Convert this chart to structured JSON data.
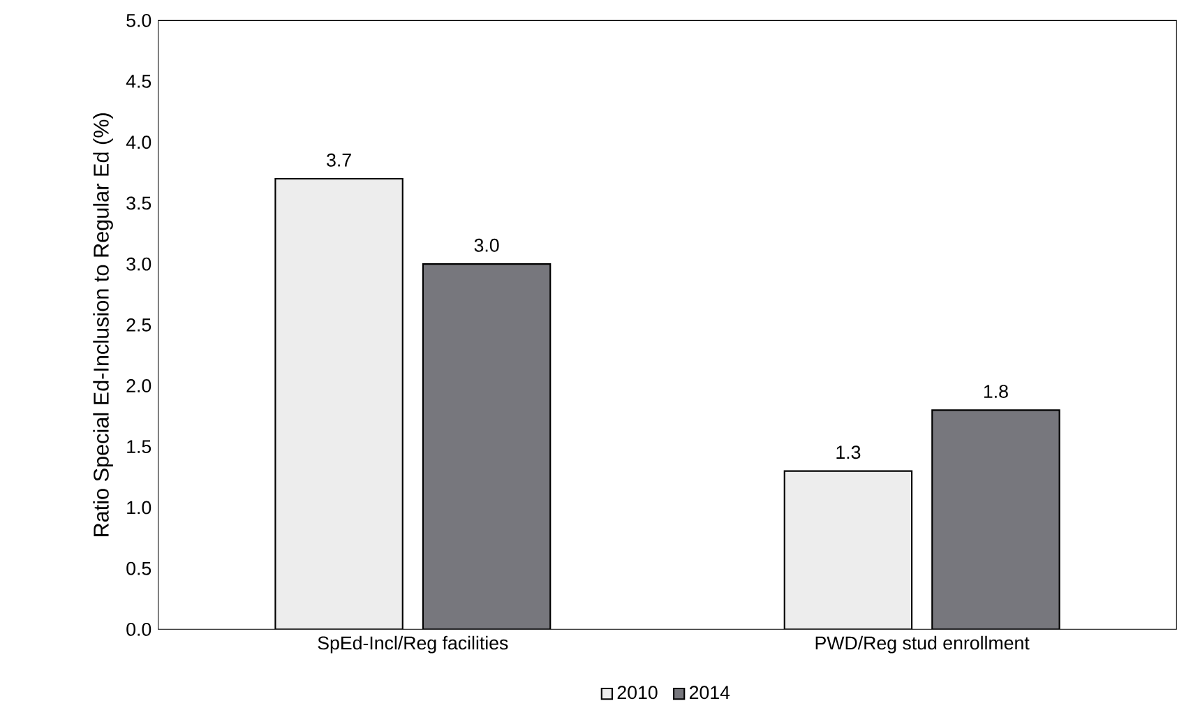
{
  "chart_data": {
    "type": "bar",
    "ylabel": "Ratio Special Ed-Inclusion to Regular Ed (%)",
    "categories": [
      "SpEd-Incl/Reg facilities",
      "PWD/Reg stud enrollment"
    ],
    "series": [
      {
        "name": "2010",
        "color": "#ededed",
        "values": [
          3.7,
          1.3
        ],
        "value_labels": [
          "3.7",
          "1.3"
        ]
      },
      {
        "name": "2014",
        "color": "#77777d",
        "values": [
          3.0,
          1.8
        ],
        "value_labels": [
          "3.0",
          "1.8"
        ]
      }
    ],
    "ylim": [
      0,
      5
    ],
    "yticks": [
      {
        "value": 0,
        "label": "0.0"
      },
      {
        "value": 0.5,
        "label": "0.5"
      },
      {
        "value": 1,
        "label": "1.0"
      },
      {
        "value": 1.5,
        "label": "1.5"
      },
      {
        "value": 2,
        "label": "2.0"
      },
      {
        "value": 2.5,
        "label": "2.5"
      },
      {
        "value": 3,
        "label": "3.0"
      },
      {
        "value": 3.5,
        "label": "3.5"
      },
      {
        "value": 4,
        "label": "4.0"
      },
      {
        "value": 4.5,
        "label": "4.5"
      },
      {
        "value": 5,
        "label": "5.0"
      }
    ],
    "legend": "bottom",
    "grid": false
  }
}
